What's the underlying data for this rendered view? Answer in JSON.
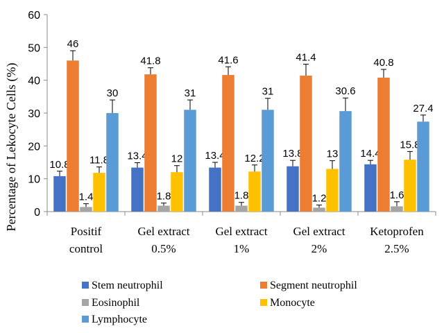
{
  "chart_data": {
    "type": "bar",
    "title": "",
    "xlabel": "",
    "ylabel": "Percentage of Lekocyte Cells  (%)",
    "ylim": [
      0,
      60
    ],
    "yticks": [
      0,
      10,
      20,
      30,
      40,
      50,
      60
    ],
    "grid": false,
    "legend_position": "bottom",
    "categories": [
      [
        "Positif",
        "control"
      ],
      [
        "Gel extract",
        "0.5%"
      ],
      [
        "Gel extract",
        "1%"
      ],
      [
        "Gel extract",
        "2%"
      ],
      [
        "Ketoprofen",
        "2.5%"
      ]
    ],
    "series": [
      {
        "name": "Stem neutrophil",
        "color": "#4472c4",
        "values": [
          10.8,
          13.4,
          13.4,
          13.8,
          14.4
        ],
        "errors": [
          1.5,
          1.5,
          1.6,
          1.8,
          1.2
        ]
      },
      {
        "name": "Segment neutrophil",
        "color": "#ed7d31",
        "values": [
          46,
          41.8,
          41.6,
          41.4,
          40.8
        ],
        "errors": [
          3,
          2,
          2.5,
          3.5,
          2.5
        ]
      },
      {
        "name": "Eosinophil",
        "color": "#a5a5a5",
        "values": [
          1.4,
          1.8,
          1.8,
          1.2,
          1.6
        ],
        "errors": [
          1,
          0.8,
          1,
          0.8,
          1.4
        ]
      },
      {
        "name": "Monocyte",
        "color": "#ffc000",
        "values": [
          11.8,
          12,
          12.2,
          13,
          15.8
        ],
        "errors": [
          1.8,
          2,
          2,
          2.5,
          2.5
        ]
      },
      {
        "name": "Lymphocyte",
        "color": "#5b9bd5",
        "values": [
          30,
          31,
          31,
          30.6,
          27.4
        ],
        "errors": [
          4,
          3,
          3.5,
          4,
          2
        ]
      }
    ]
  }
}
